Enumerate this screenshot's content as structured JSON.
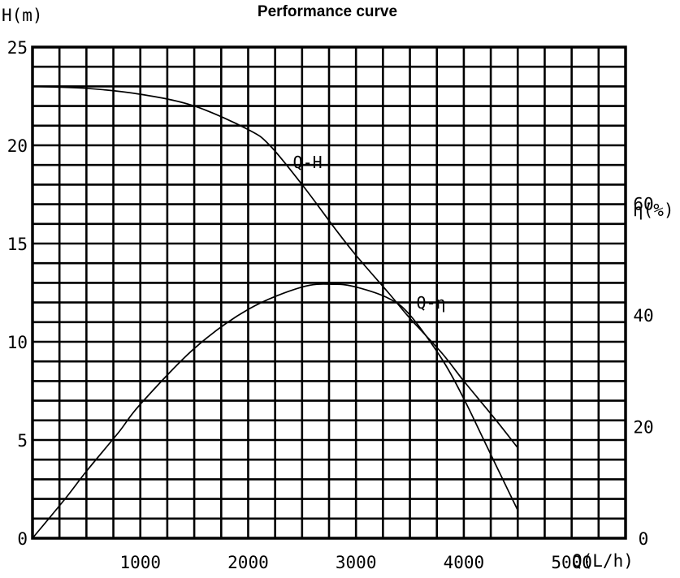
{
  "chart_data": {
    "type": "line",
    "title": "Performance curve",
    "xlabel": "Q(L/h)",
    "ylabel": "H(m)",
    "y2label": "η(%)",
    "xlim": [
      0,
      5500
    ],
    "ylim": [
      0,
      25
    ],
    "y2lim": [
      0,
      88
    ],
    "grid": true,
    "x_ticks": [
      "1000",
      "2000",
      "3000",
      "4000",
      "5000"
    ],
    "y_ticks": [
      "0",
      "5",
      "10",
      "15",
      "20",
      "25"
    ],
    "y2_ticks": [
      "0",
      "20",
      "40",
      "60"
    ],
    "series": [
      {
        "name": "Q-H",
        "axis": "left",
        "x": [
          0,
          500,
          1000,
          1500,
          2000,
          2200,
          2500,
          2800,
          3000,
          3300,
          3500,
          3800,
          4000,
          4300,
          4500
        ],
        "values": [
          23,
          22.9,
          22.6,
          22.0,
          20.8,
          20.0,
          18.0,
          15.8,
          14.4,
          12.5,
          11.2,
          9.4,
          8.0,
          6.0,
          4.6
        ]
      },
      {
        "name": "Q-η",
        "axis": "right",
        "x": [
          0,
          300,
          500,
          800,
          1000,
          1500,
          2000,
          2500,
          2800,
          3000,
          3300,
          3500,
          3800,
          4000,
          4200,
          4500
        ],
        "values": [
          0,
          7,
          12,
          19,
          24,
          34,
          41,
          45,
          45.5,
          45,
          43,
          40,
          32,
          25,
          17,
          5
        ]
      }
    ]
  }
}
